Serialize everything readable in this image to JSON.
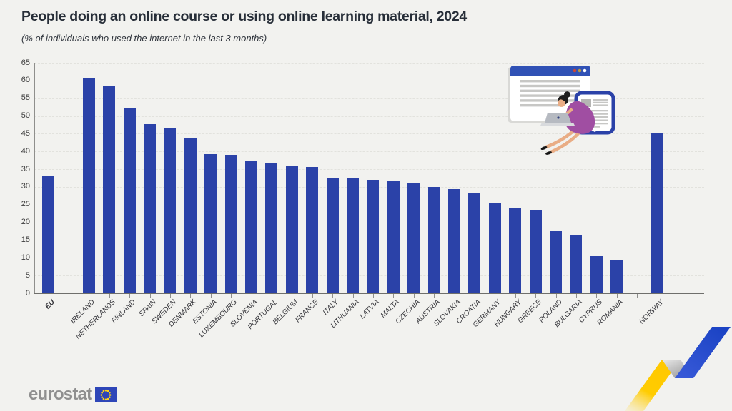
{
  "header": {
    "title": "People doing an online course or using online learning material, 2024",
    "subtitle": "(% of individuals who used the internet in the last 3 months)"
  },
  "chart_data": {
    "type": "bar",
    "title": "People doing an online course or using online learning material, 2024",
    "ylabel": "% of individuals who used the internet in the last 3 months",
    "ylim": [
      0,
      65
    ],
    "y_ticks": [
      0,
      5,
      10,
      15,
      20,
      25,
      30,
      35,
      40,
      45,
      50,
      55,
      60,
      65
    ],
    "grid": true,
    "legend": "none",
    "bar_color": "#2b42a8",
    "categories": [
      "EU",
      "IRELAND",
      "NETHERLANDS",
      "FINLAND",
      "SPAIN",
      "SWEDEN",
      "DENMARK",
      "ESTONIA",
      "LUXEMBOURG",
      "SLOVENIA",
      "PORTUGAL",
      "BELGIUM",
      "FRANCE",
      "ITALY",
      "LITHUANIA",
      "LATVIA",
      "MALTA",
      "CZECHIA",
      "AUSTRIA",
      "SLOVAKIA",
      "CROATIA",
      "GERMANY",
      "HUNGARY",
      "GREECE",
      "POLAND",
      "BULGARIA",
      "CYPRUS",
      "ROMANIA",
      "NORWAY"
    ],
    "values": [
      33.0,
      60.6,
      58.6,
      52.2,
      47.6,
      46.6,
      43.8,
      39.3,
      39.1,
      37.3,
      36.8,
      36.0,
      35.7,
      32.6,
      32.3,
      32.0,
      31.6,
      31.0,
      29.9,
      29.4,
      28.2,
      25.3,
      23.9,
      23.6,
      17.6,
      16.3,
      10.5,
      9.4,
      45.3
    ],
    "gaps_after": [
      "EU",
      "ROMANIA"
    ],
    "bold_categories": [
      "EU"
    ]
  },
  "footer": {
    "brand": "eurostat"
  },
  "decor": {
    "illustration": "woman-online-learning-illustration",
    "ribbon": "yellow-blue-zigzag-ribbon",
    "colors": {
      "yellow": "#ffcc00",
      "blue": "#1f49c7",
      "gray": "#bfbfbf",
      "flag_blue": "#2e46b8",
      "star_yellow": "#ffd617"
    }
  }
}
